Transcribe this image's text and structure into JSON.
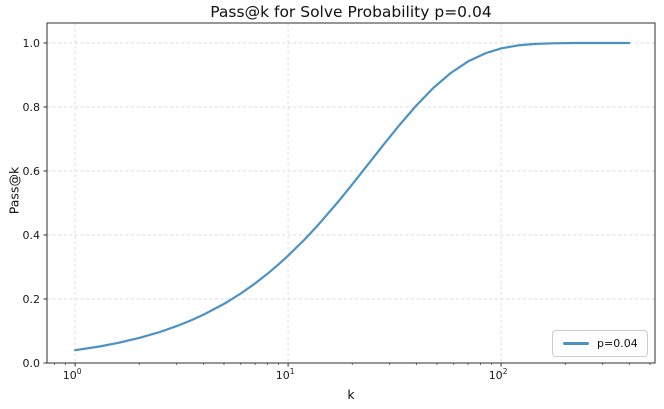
{
  "chart_data": {
    "type": "line",
    "title": "Pass@k for Solve Probability p=0.04",
    "xlabel": "k",
    "ylabel": "Pass@k",
    "x_scale": "log",
    "grid": true,
    "legend_position": "lower right",
    "xlim": [
      0.738,
      528
    ],
    "ylim": [
      0,
      1.0625
    ],
    "colors": {
      "line": "#4b92c3",
      "grid": "#dcdcdc",
      "spine": "#2f2f2f",
      "tick_text": "#1a1a1a"
    },
    "y_ticks": [
      {
        "value": 0.0,
        "label": "0.0"
      },
      {
        "value": 0.2,
        "label": "0.2"
      },
      {
        "value": 0.4,
        "label": "0.4"
      },
      {
        "value": 0.6,
        "label": "0.6"
      },
      {
        "value": 0.8,
        "label": "0.8"
      },
      {
        "value": 1.0,
        "label": "1.0"
      }
    ],
    "x_ticks_major": [
      {
        "value": 1,
        "base": "10",
        "exp": "0"
      },
      {
        "value": 10,
        "base": "10",
        "exp": "1"
      },
      {
        "value": 100,
        "base": "10",
        "exp": "2"
      }
    ],
    "x_ticks_minor": [
      0.8,
      0.9,
      2,
      3,
      4,
      5,
      6,
      7,
      8,
      9,
      20,
      30,
      40,
      50,
      60,
      70,
      80,
      90,
      200,
      300,
      400,
      500
    ],
    "series": [
      {
        "name": "p=0.04",
        "color": "#4b92c3",
        "x": [
          1,
          1.3,
          1.6,
          2,
          2.5,
          3,
          3.5,
          4,
          5,
          6,
          7,
          8,
          9,
          10,
          12,
          14,
          17,
          20,
          24,
          28,
          33,
          40,
          48,
          58,
          70,
          85,
          100,
          120,
          145,
          175,
          220,
          280,
          400
        ],
        "y": [
          0.04,
          0.0517,
          0.0632,
          0.0784,
          0.097,
          0.1153,
          0.1331,
          0.1507,
          0.1846,
          0.2172,
          0.2486,
          0.2786,
          0.3075,
          0.3352,
          0.3873,
          0.4353,
          0.5004,
          0.558,
          0.6246,
          0.6812,
          0.74,
          0.8046,
          0.859,
          0.9063,
          0.9426,
          0.9688,
          0.9831,
          0.9925,
          0.9973,
          0.9992,
          0.9999,
          1.0,
          1.0
        ]
      }
    ]
  }
}
